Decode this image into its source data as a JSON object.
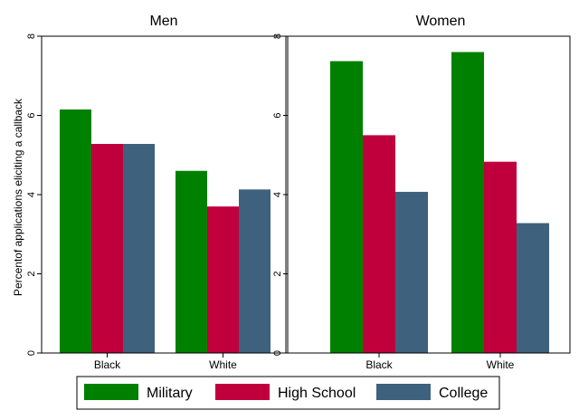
{
  "chart_data": {
    "type": "bar",
    "ylabel": "Percentof applications eliciting a callback",
    "ylim": [
      0,
      8
    ],
    "yticks": [
      "0",
      "2",
      "4",
      "6",
      "8"
    ],
    "categories": [
      "Black",
      "White"
    ],
    "legend": {
      "position": "bottom",
      "entries": [
        "Military",
        "High School",
        "College"
      ]
    },
    "colors": {
      "Military": "#008000",
      "High School": "#c0003c",
      "College": "#3e617d"
    },
    "panels": [
      {
        "title": "Men",
        "series": [
          {
            "name": "Military",
            "values": [
              6.15,
              4.6
            ]
          },
          {
            "name": "High School",
            "values": [
              5.28,
              3.7
            ]
          },
          {
            "name": "College",
            "values": [
              5.28,
              4.13
            ]
          }
        ]
      },
      {
        "title": "Women",
        "series": [
          {
            "name": "Military",
            "values": [
              7.37,
              7.6
            ]
          },
          {
            "name": "High School",
            "values": [
              5.5,
              4.83
            ]
          },
          {
            "name": "College",
            "values": [
              4.07,
              3.28
            ]
          }
        ]
      }
    ]
  }
}
